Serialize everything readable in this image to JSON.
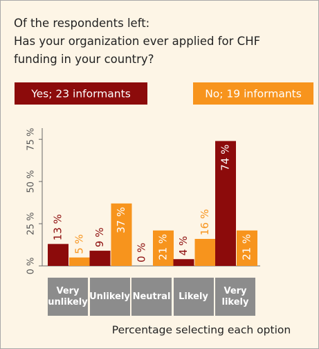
{
  "chart_data": {
    "type": "bar",
    "title": "Of the respondents left:",
    "subtitle": "Has your organization ever applied for CHF funding in your country?",
    "x_label": "Percentage selecting each option",
    "categories": [
      "Very unlikely",
      "Unlikely",
      "Neutral",
      "Likely",
      "Very likely"
    ],
    "series": [
      {
        "name": "Yes; 23 informants",
        "color": "#8c0b0b",
        "values": [
          13,
          9,
          0,
          4,
          74
        ],
        "value_labels": [
          "13 %",
          "9 %",
          "0 %",
          "4 %",
          "74 %"
        ]
      },
      {
        "name": "No; 19 informants",
        "color": "#f7941d",
        "values": [
          5,
          37,
          21,
          16,
          21
        ],
        "value_labels": [
          "5 %",
          "37 %",
          "21 %",
          "16 %",
          "21 %"
        ]
      }
    ],
    "ylim": [
      0,
      80
    ],
    "yticks": [
      {
        "value": 0,
        "label": "0 %"
      },
      {
        "value": 25,
        "label": "25 %"
      },
      {
        "value": 50,
        "label": "50 %"
      },
      {
        "value": 75,
        "label": "75 %"
      }
    ],
    "grid": false
  }
}
